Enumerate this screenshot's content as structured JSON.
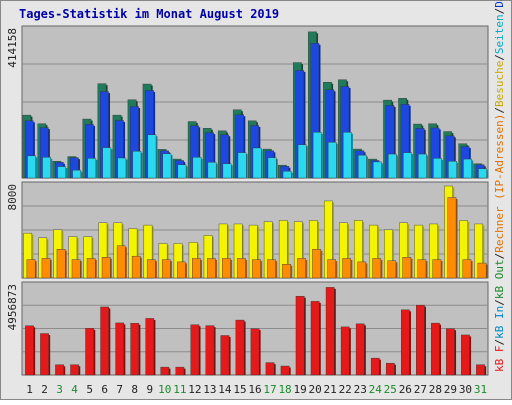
{
  "colors": {
    "frame": "#e6e6e6",
    "panel": "#c0c0c0",
    "grid": "#8c8c8c",
    "title": "#0000aa",
    "axis_text": "#222222",
    "weekend_text": "#1a8a2a",
    "req": "#217a5a",
    "files": "#1c48e0",
    "pages": "#2ad8f0",
    "visits": "#f4f400",
    "sites": "#ff8c00",
    "kb": "#e41a1a"
  },
  "chart_data": {
    "type": "bar",
    "title": "Tages-Statistik im Monat August 2019",
    "categories": [
      "1",
      "2",
      "3",
      "4",
      "5",
      "6",
      "7",
      "8",
      "9",
      "10",
      "11",
      "12",
      "13",
      "14",
      "15",
      "16",
      "17",
      "18",
      "19",
      "20",
      "21",
      "22",
      "23",
      "24",
      "25",
      "26",
      "27",
      "28",
      "29",
      "30",
      "31"
    ],
    "weekend_days": [
      "3",
      "4",
      "10",
      "11",
      "17",
      "18",
      "24",
      "25",
      "31"
    ],
    "right_labels": [
      {
        "text": "Anfragen",
        "color": "#1a8a2a"
      },
      {
        "text": "/",
        "color": "#222222"
      },
      {
        "text": "Dateien",
        "color": "#0033cc"
      },
      {
        "text": "/",
        "color": "#222222"
      },
      {
        "text": "Seiten",
        "color": "#00a8c8"
      },
      {
        "text": "/",
        "color": "#222222"
      },
      {
        "text": "Besuche",
        "color": "#c8a800"
      },
      {
        "text": "/",
        "color": "#222222"
      },
      {
        "text": "Rechner (IP-Adressen)",
        "color": "#e07000"
      },
      {
        "text": "/",
        "color": "#222222"
      },
      {
        "text": "kB Out",
        "color": "#1a8a2a"
      },
      {
        "text": "/",
        "color": "#222222"
      },
      {
        "text": "kB In",
        "color": "#0088c8"
      },
      {
        "text": "/",
        "color": "#222222"
      },
      {
        "text": "kB F",
        "color": "#e41a1a"
      }
    ],
    "panels": [
      {
        "id": "hits",
        "ylabel": "414158",
        "ymax": 414158,
        "series": [
          {
            "key": "req",
            "values": [
              176000,
              152000,
              47000,
              60000,
              165000,
              264000,
              176000,
              219000,
              263000,
              80000,
              53000,
              158000,
              139000,
              132000,
              191000,
              160000,
              81000,
              36000,
              323000,
              409000,
              268000,
              275000,
              81000,
              53000,
              218000,
              223000,
              151000,
              152000,
              130000,
              96000,
              40000
            ]
          },
          {
            "key": "files",
            "values": [
              160000,
              141000,
              44000,
              57000,
              150000,
              242000,
              161000,
              200000,
              245000,
              76000,
              49000,
              146000,
              127000,
              121000,
              177000,
              147000,
              76000,
              33000,
              301000,
              377000,
              247000,
              256000,
              76000,
              49000,
              203000,
              206000,
              139000,
              140000,
              118000,
              88000,
              37000
            ]
          },
          {
            "key": "pages",
            "values": [
              62000,
              58000,
              32000,
              22000,
              55000,
              85000,
              56000,
              75000,
              121000,
              68000,
              37000,
              58000,
              44000,
              40000,
              71000,
              84000,
              57000,
              19000,
              93000,
              128000,
              100000,
              128000,
              64000,
              45000,
              67000,
              71000,
              67000,
              55000,
              47000,
              53000,
              26000
            ]
          }
        ]
      },
      {
        "id": "visits",
        "ylabel": "8000",
        "ymax": 8000,
        "series": [
          {
            "key": "visits",
            "values": [
              3900,
              3500,
              4200,
              3600,
              3600,
              4800,
              4800,
              4300,
              4600,
              3000,
              3000,
              3100,
              3700,
              4700,
              4700,
              4600,
              4900,
              5000,
              4900,
              5000,
              6700,
              4800,
              5000,
              4600,
              4200,
              4800,
              4600,
              4700,
              8000,
              5000,
              4700
            ]
          },
          {
            "key": "sites",
            "values": [
              1600,
              1700,
              2500,
              1600,
              1700,
              1800,
              2800,
              1900,
              1600,
              1600,
              1400,
              1700,
              1700,
              1700,
              1700,
              1600,
              1600,
              1200,
              1700,
              2500,
              1600,
              1700,
              1400,
              1700,
              1500,
              1800,
              1600,
              1600,
              7000,
              1600,
              1300
            ]
          }
        ]
      },
      {
        "id": "kb",
        "ylabel": "4956873",
        "ymax": 4956873,
        "series": [
          {
            "key": "kb",
            "values": [
              2740000,
              2310000,
              570000,
              570000,
              2600000,
              3790000,
              2900000,
              2880000,
              3150000,
              440000,
              440000,
              2800000,
              2750000,
              2200000,
              3060000,
              2580000,
              690000,
              500000,
              4390000,
              4100000,
              4880000,
              2680000,
              2850000,
              940000,
              660000,
              3630000,
              3890000,
              2890000,
              2580000,
              2230000,
              570000
            ]
          }
        ]
      }
    ]
  }
}
